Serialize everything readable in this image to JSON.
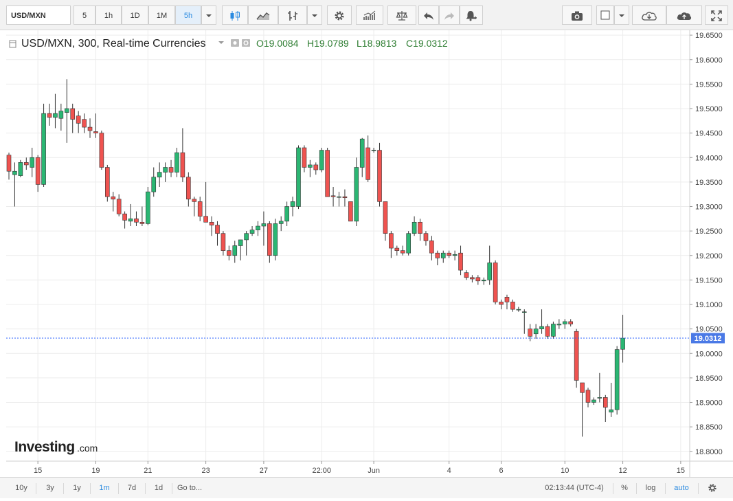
{
  "toolbar": {
    "symbol": "USD/MXN",
    "intervals": [
      "5",
      "1h",
      "1D",
      "1M",
      "5h"
    ],
    "selected_interval": "5h"
  },
  "legend": {
    "title": "USD/MXN, 300, Real-time Currencies",
    "open": "O19.0084",
    "high": "H19.0789",
    "low": "L18.9813",
    "close": "C19.0312"
  },
  "brand": {
    "name": "Investing",
    "suffix": ".com"
  },
  "bottombar": {
    "ranges": [
      "10y",
      "3y",
      "1y",
      "1m",
      "7d",
      "1d"
    ],
    "selected_range": "1m",
    "goto": "Go to...",
    "clock": "02:13:44 (UTC-4)",
    "percent": "%",
    "log": "log",
    "auto": "auto"
  },
  "colors": {
    "up": "#26a69a",
    "up_fill": "#2bb673",
    "down": "#ef5350",
    "grid": "#ececec",
    "price_line": "#2962ff",
    "price_tag": "#4a79e6"
  },
  "chart_data": {
    "type": "candlestick",
    "ylim": [
      18.78,
      19.66
    ],
    "yticks": [
      "19.6500",
      "19.6000",
      "19.5500",
      "19.5000",
      "19.4500",
      "19.4000",
      "19.3500",
      "19.3000",
      "19.2500",
      "19.2000",
      "19.1500",
      "19.1000",
      "19.0500",
      "19.0000",
      "18.9500",
      "18.9000",
      "18.8500",
      "18.8000"
    ],
    "xticks": [
      {
        "label": "15",
        "i": 5
      },
      {
        "label": "19",
        "i": 15
      },
      {
        "label": "21",
        "i": 24
      },
      {
        "label": "23",
        "i": 34
      },
      {
        "label": "27",
        "i": 44
      },
      {
        "label": "22:00",
        "i": 54
      },
      {
        "label": "Jun",
        "i": 63
      },
      {
        "label": "4",
        "i": 76
      },
      {
        "label": "6",
        "i": 85
      },
      {
        "label": "10",
        "i": 96
      },
      {
        "label": "12",
        "i": 106
      },
      {
        "label": "15",
        "i": 116
      }
    ],
    "last_price": "19.0312",
    "last_value": 19.0312,
    "candles": [
      [
        19.405,
        19.41,
        19.355,
        19.372
      ],
      [
        19.365,
        19.39,
        19.3,
        19.372
      ],
      [
        19.363,
        19.395,
        19.36,
        19.39
      ],
      [
        19.39,
        19.4,
        19.375,
        19.385
      ],
      [
        19.38,
        19.42,
        19.36,
        19.4
      ],
      [
        19.4,
        19.405,
        19.33,
        19.345
      ],
      [
        19.345,
        19.51,
        19.34,
        19.49
      ],
      [
        19.49,
        19.51,
        19.465,
        19.482
      ],
      [
        19.482,
        19.53,
        19.46,
        19.49
      ],
      [
        19.48,
        19.51,
        19.455,
        19.495
      ],
      [
        19.492,
        19.56,
        19.43,
        19.5
      ],
      [
        19.5,
        19.51,
        19.45,
        19.478
      ],
      [
        19.485,
        19.495,
        19.45,
        19.47
      ],
      [
        19.478,
        19.49,
        19.45,
        19.462
      ],
      [
        19.462,
        19.48,
        19.44,
        19.455
      ],
      [
        19.453,
        19.49,
        19.44,
        19.45
      ],
      [
        19.45,
        19.455,
        19.375,
        19.38
      ],
      [
        19.38,
        19.385,
        19.31,
        19.32
      ],
      [
        19.32,
        19.33,
        19.29,
        19.315
      ],
      [
        19.315,
        19.325,
        19.28,
        19.285
      ],
      [
        19.285,
        19.29,
        19.255,
        19.272
      ],
      [
        19.27,
        19.305,
        19.26,
        19.275
      ],
      [
        19.275,
        19.29,
        19.26,
        19.268
      ],
      [
        19.268,
        19.3,
        19.26,
        19.265
      ],
      [
        19.265,
        19.34,
        19.262,
        19.33
      ],
      [
        19.33,
        19.38,
        19.32,
        19.36
      ],
      [
        19.36,
        19.39,
        19.34,
        19.37
      ],
      [
        19.37,
        19.39,
        19.35,
        19.38
      ],
      [
        19.38,
        19.395,
        19.36,
        19.37
      ],
      [
        19.37,
        19.42,
        19.36,
        19.41
      ],
      [
        19.41,
        19.46,
        19.35,
        19.36
      ],
      [
        19.36,
        19.37,
        19.3,
        19.315
      ],
      [
        19.315,
        19.32,
        19.28,
        19.31
      ],
      [
        19.31,
        19.32,
        19.27,
        19.28
      ],
      [
        19.28,
        19.35,
        19.27,
        19.268
      ],
      [
        19.268,
        19.28,
        19.24,
        19.262
      ],
      [
        19.262,
        19.27,
        19.22,
        19.245
      ],
      [
        19.245,
        19.25,
        19.2,
        19.21
      ],
      [
        19.21,
        19.22,
        19.19,
        19.2
      ],
      [
        19.2,
        19.23,
        19.185,
        19.22
      ],
      [
        19.22,
        19.23,
        19.19,
        19.232
      ],
      [
        19.232,
        19.25,
        19.2,
        19.245
      ],
      [
        19.245,
        19.26,
        19.24,
        19.252
      ],
      [
        19.252,
        19.27,
        19.24,
        19.26
      ],
      [
        19.26,
        19.29,
        19.22,
        19.265
      ],
      [
        19.265,
        19.27,
        19.185,
        19.2
      ],
      [
        19.2,
        19.275,
        19.19,
        19.265
      ],
      [
        19.265,
        19.28,
        19.25,
        19.27
      ],
      [
        19.27,
        19.31,
        19.26,
        19.3
      ],
      [
        19.3,
        19.32,
        19.28,
        19.31
      ],
      [
        19.3,
        19.425,
        19.295,
        19.42
      ],
      [
        19.42,
        19.425,
        19.37,
        19.38
      ],
      [
        19.38,
        19.395,
        19.36,
        19.385
      ],
      [
        19.385,
        19.39,
        19.365,
        19.375
      ],
      [
        19.375,
        19.42,
        19.37,
        19.415
      ],
      [
        19.415,
        19.42,
        19.32,
        19.32
      ],
      [
        19.322,
        19.34,
        19.3,
        19.32
      ],
      [
        19.32,
        19.33,
        19.3,
        19.32
      ],
      [
        19.32,
        19.335,
        19.3,
        19.318
      ],
      [
        19.31,
        19.31,
        19.27,
        19.27
      ],
      [
        19.27,
        19.4,
        19.26,
        19.38
      ],
      [
        19.38,
        19.44,
        19.36,
        19.438
      ],
      [
        19.42,
        19.445,
        19.35,
        19.355
      ],
      [
        19.415,
        19.42,
        19.41,
        19.415
      ],
      [
        19.415,
        19.43,
        19.3,
        19.31
      ],
      [
        19.31,
        19.31,
        19.23,
        19.245
      ],
      [
        19.245,
        19.25,
        19.195,
        19.215
      ],
      [
        19.215,
        19.22,
        19.2,
        19.21
      ],
      [
        19.21,
        19.22,
        19.2,
        19.205
      ],
      [
        19.205,
        19.25,
        19.2,
        19.245
      ],
      [
        19.245,
        19.28,
        19.24,
        19.268
      ],
      [
        19.268,
        19.275,
        19.23,
        19.245
      ],
      [
        19.245,
        19.25,
        19.22,
        19.23
      ],
      [
        19.23,
        19.24,
        19.19,
        19.205
      ],
      [
        19.205,
        19.21,
        19.18,
        19.195
      ],
      [
        19.195,
        19.21,
        19.185,
        19.205
      ],
      [
        19.205,
        19.21,
        19.195,
        19.2
      ],
      [
        19.2,
        19.21,
        19.19,
        19.202
      ],
      [
        19.205,
        19.22,
        19.16,
        19.17
      ],
      [
        19.165,
        19.17,
        19.15,
        19.155
      ],
      [
        19.155,
        19.16,
        19.145,
        19.152
      ],
      [
        19.155,
        19.16,
        19.14,
        19.148
      ],
      [
        19.148,
        19.155,
        19.14,
        19.15
      ],
      [
        19.15,
        19.22,
        19.14,
        19.185
      ],
      [
        19.185,
        19.19,
        19.1,
        19.105
      ],
      [
        19.105,
        19.11,
        19.09,
        19.1
      ],
      [
        19.115,
        19.12,
        19.09,
        19.105
      ],
      [
        19.105,
        19.11,
        19.085,
        19.09
      ],
      [
        19.09,
        19.095,
        19.085,
        19.09
      ],
      [
        19.085,
        19.09,
        19.04,
        19.085
      ],
      [
        19.05,
        19.06,
        19.025,
        19.035
      ],
      [
        19.04,
        19.06,
        19.03,
        19.05
      ],
      [
        19.05,
        19.09,
        19.04,
        19.055
      ],
      [
        19.055,
        19.06,
        19.03,
        19.035
      ],
      [
        19.035,
        19.065,
        19.03,
        19.06
      ],
      [
        19.058,
        19.07,
        19.05,
        19.06
      ],
      [
        19.06,
        19.07,
        19.05,
        19.065
      ],
      [
        19.065,
        19.07,
        19.055,
        19.06
      ],
      [
        19.045,
        19.05,
        18.93,
        18.945
      ],
      [
        18.94,
        18.94,
        18.83,
        18.92
      ],
      [
        18.925,
        18.93,
        18.89,
        18.9
      ],
      [
        18.9,
        18.91,
        18.895,
        18.905
      ],
      [
        18.91,
        18.96,
        18.9,
        18.91
      ],
      [
        18.91,
        18.915,
        18.86,
        18.89
      ],
      [
        18.88,
        18.94,
        18.87,
        18.885
      ],
      [
        18.885,
        19.015,
        18.875,
        19.008
      ],
      [
        19.0084,
        19.0789,
        18.9813,
        19.0312
      ]
    ]
  }
}
